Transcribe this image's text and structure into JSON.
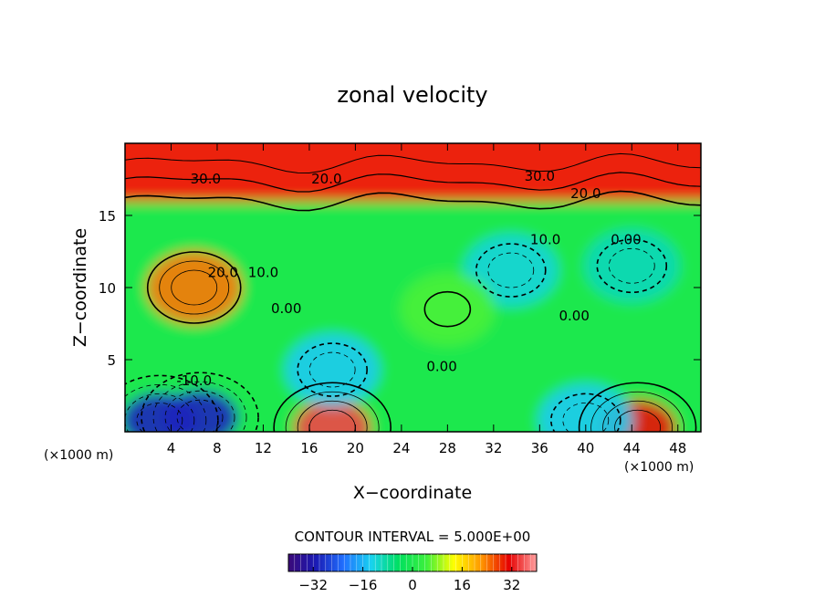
{
  "chart_data": {
    "type": "heatmap",
    "title": "zonal velocity",
    "xlabel": "X−coordinate",
    "ylabel": "Z−coordinate",
    "x_unit_left": "(×1000 m)",
    "x_unit_right": "(×1000 m)",
    "xlim": [
      0,
      50
    ],
    "ylim": [
      0,
      20
    ],
    "x_ticks": [
      "4",
      "8",
      "12",
      "16",
      "20",
      "24",
      "28",
      "32",
      "36",
      "40",
      "44",
      "48"
    ],
    "x_tick_values": [
      4,
      8,
      12,
      16,
      20,
      24,
      28,
      32,
      36,
      40,
      44,
      48
    ],
    "y_ticks": [
      "5",
      "10",
      "15"
    ],
    "y_tick_values": [
      5,
      10,
      15
    ],
    "contour_interval_text": "CONTOUR INTERVAL = 5.000E+00",
    "colorbar": {
      "range": [
        -40,
        40
      ],
      "ticks": [
        "−32",
        "−16",
        "0",
        "16",
        "32"
      ],
      "tick_values": [
        -32,
        -16,
        0,
        16,
        32
      ],
      "colors": [
        "#3b0a78",
        "#1a1ab4",
        "#2070ff",
        "#19d2f0",
        "#00e060",
        "#3cf03c",
        "#ffff00",
        "#ff9600",
        "#e60000",
        "#ffa0a0"
      ]
    },
    "contour_labels": [
      {
        "text": "30.0",
        "x": 7,
        "y": 17.5
      },
      {
        "text": "20.0",
        "x": 17.5,
        "y": 17.5
      },
      {
        "text": "30.0",
        "x": 36,
        "y": 17.7
      },
      {
        "text": "20.0",
        "x": 40,
        "y": 16.5
      },
      {
        "text": "10.0",
        "x": 36.5,
        "y": 13.3
      },
      {
        "text": "0.00",
        "x": 43.5,
        "y": 13.3
      },
      {
        "text": "20.0",
        "x": 8.5,
        "y": 11
      },
      {
        "text": "10.0",
        "x": 12,
        "y": 11
      },
      {
        "text": "0.00",
        "x": 14,
        "y": 8.5
      },
      {
        "text": "0.00",
        "x": 39,
        "y": 8
      },
      {
        "text": "0.00",
        "x": 27.5,
        "y": 4.5
      },
      {
        "text": "-10.0",
        "x": 6,
        "y": 3.5
      }
    ],
    "features": [
      {
        "x": 6,
        "y": 10,
        "value": 24
      },
      {
        "x": 3,
        "y": 0.8,
        "value": -30
      },
      {
        "x": 6.5,
        "y": 1,
        "value": -30
      },
      {
        "x": 18,
        "y": 0.3,
        "value": 35
      },
      {
        "x": 18,
        "y": 4.3,
        "value": -14
      },
      {
        "x": 33.5,
        "y": 11.2,
        "value": -12
      },
      {
        "x": 44,
        "y": 11.5,
        "value": -10
      },
      {
        "x": 44.5,
        "y": 0.3,
        "value": 30
      },
      {
        "x": 40,
        "y": 0.8,
        "value": -14
      },
      {
        "x": 28,
        "y": 8.5,
        "value": 5
      },
      {
        "x": 25,
        "y": 18.5,
        "value": 28
      },
      {
        "x": 45,
        "y": 19,
        "value": 32
      }
    ]
  }
}
